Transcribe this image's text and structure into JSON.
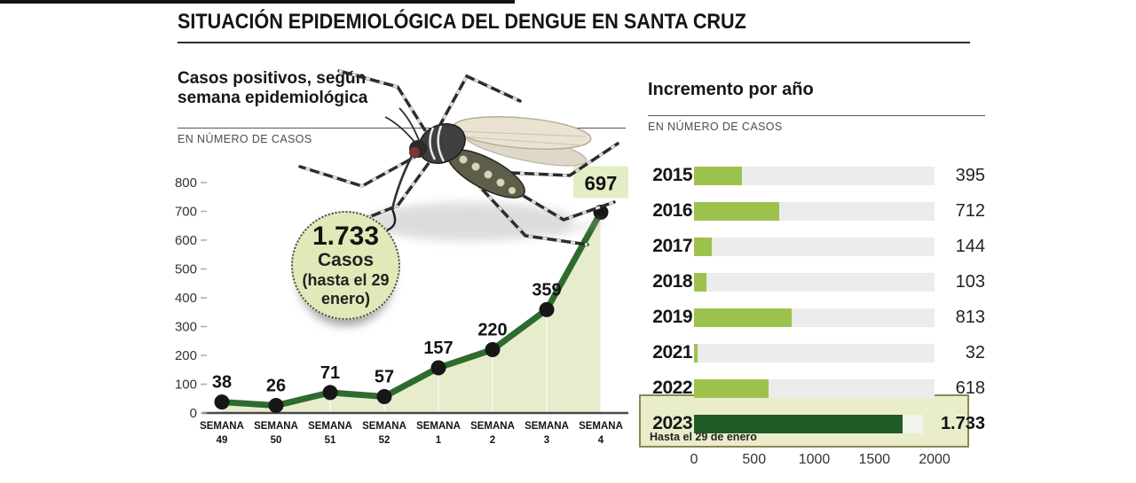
{
  "header": {
    "title": "SITUACIÓN EPIDEMIOLÓGICA DEL DENGUE EN SANTA CRUZ"
  },
  "left_chart": {
    "title_line1": "Casos positivos, según",
    "title_line2": "semana epidemiológica",
    "unit": "EN NÚMERO DE CASOS",
    "annotation": {
      "value": "1.733",
      "line2": "Casos",
      "line3": "(hasta el 29",
      "line4": "enero)"
    }
  },
  "right_chart": {
    "title": "Incremento por año",
    "unit": "EN NÚMERO DE CASOS",
    "note": "Hasta el 29 de enero"
  },
  "colors": {
    "accent_green": "#9cc24d",
    "dark_green": "#1f5b26",
    "line_green": "#2e6b2f",
    "area_fill": "#e7eccd",
    "label_box": "#e3edc6",
    "dot": "#171717",
    "track": "#ececec",
    "highlight_bg": "#eaedca",
    "highlight_border": "#8b8752"
  },
  "chart_data": [
    {
      "type": "line",
      "title": "Casos positivos, según semana epidemiológica",
      "ylabel": "EN NÚMERO DE CASOS",
      "categories": [
        "SEMANA 49",
        "SEMANA 50",
        "SEMANA 51",
        "SEMANA 52",
        "SEMANA 1",
        "SEMANA 2",
        "SEMANA 3",
        "SEMANA 4"
      ],
      "values": [
        38,
        26,
        71,
        57,
        157,
        220,
        359,
        697
      ],
      "ylim": [
        0,
        800
      ],
      "yticks": [
        0,
        100,
        200,
        300,
        400,
        500,
        600,
        700,
        800
      ],
      "area_fill": true,
      "last_label_boxed": true,
      "annotation": "1.733 Casos (hasta el 29 enero)"
    },
    {
      "type": "bar",
      "orientation": "horizontal",
      "title": "Incremento por año",
      "categories": [
        "2015",
        "2016",
        "2017",
        "2018",
        "2019",
        "2021",
        "2022",
        "2023"
      ],
      "values": [
        395,
        712,
        144,
        103,
        813,
        32,
        618,
        1733
      ],
      "value_labels": [
        "395",
        "712",
        "144",
        "103",
        "813",
        "32",
        "618",
        "1.733"
      ],
      "xlim": [
        0,
        2000
      ],
      "xticks": [
        0,
        500,
        1000,
        1500,
        2000
      ],
      "highlight_category": "2023",
      "note": "Hasta el 29 de enero"
    }
  ]
}
